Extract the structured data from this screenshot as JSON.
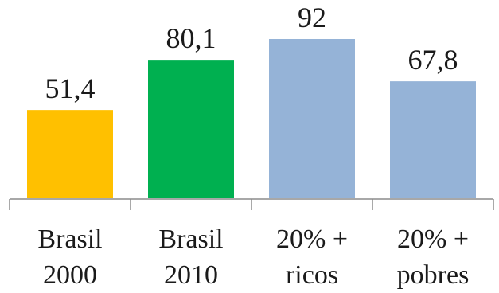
{
  "chart_data": {
    "type": "bar",
    "categories": [
      [
        "Brasil",
        "2000"
      ],
      [
        "Brasil",
        "2010"
      ],
      [
        "20% +",
        "ricos"
      ],
      [
        "20% +",
        "pobres"
      ]
    ],
    "values": [
      51.4,
      80.1,
      92,
      67.8
    ],
    "value_labels": [
      "51,4",
      "80,1",
      "92",
      "67,8"
    ],
    "colors": [
      "#FFC000",
      "#00B050",
      "#95B3D7",
      "#95B3D7"
    ],
    "title": "",
    "xlabel": "",
    "ylabel": "",
    "ylim": [
      0,
      92
    ],
    "grid": false,
    "legend": "none"
  }
}
